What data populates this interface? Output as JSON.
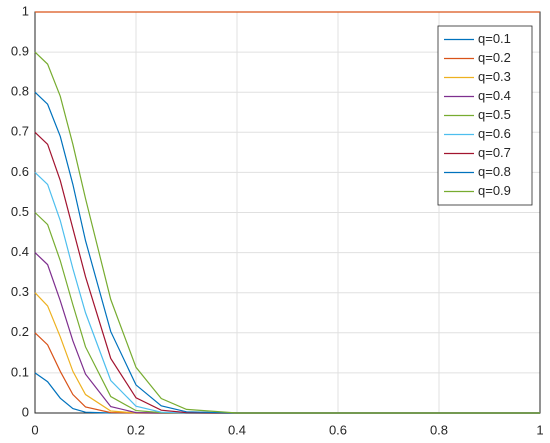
{
  "chart_data": {
    "type": "line",
    "x": [
      0,
      0.025,
      0.05,
      0.075,
      0.1,
      0.15,
      0.2,
      0.25,
      0.3,
      0.4,
      1
    ],
    "series": [
      {
        "name": "q=0.1",
        "color": "#0072BD",
        "values": [
          0.1,
          0.078,
          0.037,
          0.011,
          0.002,
          0,
          0,
          0,
          0,
          0,
          0
        ]
      },
      {
        "name": "q=0.2",
        "color": "#D95319",
        "values": [
          0.2,
          0.17,
          0.104,
          0.046,
          0.015,
          0.001,
          0,
          0,
          0,
          0,
          0
        ]
      },
      {
        "name": "q=0.3",
        "color": "#EDB120",
        "values": [
          0.3,
          0.267,
          0.19,
          0.104,
          0.046,
          0.005,
          0,
          0,
          0,
          0,
          0
        ]
      },
      {
        "name": "q=0.4",
        "color": "#7E2F8E",
        "values": [
          0.4,
          0.37,
          0.28,
          0.18,
          0.097,
          0.016,
          0.001,
          0,
          0,
          0,
          0
        ]
      },
      {
        "name": "q=0.5",
        "color": "#77AC30",
        "values": [
          0.5,
          0.47,
          0.38,
          0.27,
          0.165,
          0.041,
          0.006,
          0.001,
          0,
          0,
          0
        ]
      },
      {
        "name": "q=0.6",
        "color": "#4DBEEE",
        "values": [
          0.6,
          0.57,
          0.48,
          0.36,
          0.25,
          0.081,
          0.017,
          0.002,
          0,
          0,
          0
        ]
      },
      {
        "name": "q=0.7",
        "color": "#A2142F",
        "values": [
          0.7,
          0.67,
          0.58,
          0.46,
          0.34,
          0.136,
          0.038,
          0.007,
          0.001,
          0,
          0
        ]
      },
      {
        "name": "q=0.8",
        "color": "#0072BD",
        "values": [
          0.8,
          0.77,
          0.69,
          0.57,
          0.43,
          0.203,
          0.07,
          0.018,
          0.003,
          0,
          0
        ]
      },
      {
        "name": "q=0.9",
        "color": "#77AC30",
        "values": [
          0.9,
          0.87,
          0.79,
          0.67,
          0.535,
          0.283,
          0.114,
          0.036,
          0.009,
          0,
          0
        ]
      },
      {
        "color": "#D95319",
        "values": [
          1,
          1,
          1,
          1,
          1,
          1,
          1,
          1,
          1,
          1,
          1
        ]
      }
    ],
    "legend_colors": [
      "#0072BD",
      "#D95319",
      "#EDB120",
      "#7E2F8E",
      "#77AC30",
      "#4DBEEE",
      "#A2142F",
      "#0072BD",
      "#D95319"
    ],
    "xlim": [
      0,
      1
    ],
    "xticks": [
      0,
      0.2,
      0.4,
      0.6,
      0.8,
      1
    ],
    "ylim": [
      0,
      1
    ],
    "yticks": [
      0,
      0.1,
      0.2,
      0.3,
      0.4,
      0.5,
      0.6,
      0.7,
      0.8,
      0.9,
      1
    ],
    "grid": true,
    "legend": "top-right"
  }
}
